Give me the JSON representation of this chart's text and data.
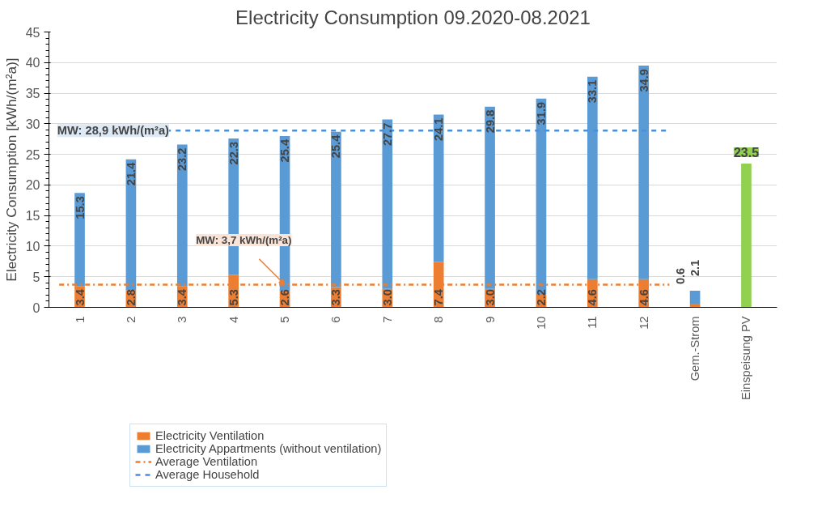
{
  "chart_data": {
    "type": "bar",
    "title": "Electricity Consumption 09.2020-08.2021",
    "ylabel": "Electricity Consumption [kWh/(m²a)]",
    "categories": [
      "1",
      "2",
      "3",
      "4",
      "5",
      "6",
      "7",
      "8",
      "9",
      "10",
      "11",
      "12",
      "Gem.-Strom",
      "Einspeisung PV"
    ],
    "stacked": true,
    "series": [
      {
        "name": "Electricity Ventilation",
        "color": "#ed7d31",
        "values": [
          3.4,
          2.8,
          3.4,
          5.3,
          2.6,
          3.3,
          3.0,
          7.4,
          3.0,
          2.2,
          4.6,
          4.6,
          0.6,
          null
        ],
        "value_labels": [
          "3.4",
          "2.8",
          "3.4",
          "5.3",
          "2.6",
          "3.3",
          "3.0",
          "7.4",
          "3.0",
          "2.2",
          "4.6",
          "4.6",
          "0.6",
          null
        ]
      },
      {
        "name": "Electricity Appartments (without ventilation)",
        "color": "#5b9bd5",
        "values": [
          15.3,
          21.4,
          23.2,
          22.3,
          25.4,
          25.4,
          27.7,
          24.1,
          29.8,
          31.9,
          33.1,
          34.9,
          2.1,
          null
        ],
        "value_labels": [
          "15.3",
          "21.4",
          "23.2",
          "22.3",
          "25.4",
          "25.4",
          "27.7",
          "24.1",
          "29.8",
          "31.9",
          "33.1",
          "34.9",
          "2.1",
          null
        ]
      },
      {
        "color": "#92d050",
        "values": [
          null,
          null,
          null,
          null,
          null,
          null,
          null,
          null,
          null,
          null,
          null,
          null,
          null,
          23.5
        ],
        "value_labels": [
          null,
          null,
          null,
          null,
          null,
          null,
          null,
          null,
          null,
          null,
          null,
          null,
          null,
          "23.5"
        ]
      }
    ],
    "ref_lines": [
      {
        "axis": "y",
        "value": 3.7,
        "label": "Average Ventilation",
        "color": "#ed7d31",
        "line_style": "dashdot"
      },
      {
        "axis": "y",
        "value": 28.9,
        "label": "Average Household",
        "color": "#4a90d9",
        "line_style": "dashed"
      }
    ],
    "annotations": [
      {
        "text": "MW: 28,9 kWh/(m²a)",
        "x": "2",
        "y": 28.9
      },
      {
        "text": "MW: 3,7 kWh/(m²a)",
        "x": "5",
        "y": 3.7
      }
    ],
    "ylim": [
      0,
      45
    ],
    "yticks": [
      0,
      5,
      10,
      15,
      20,
      25,
      30,
      35,
      40,
      45
    ],
    "grid": "y",
    "legend": "bottom left"
  }
}
